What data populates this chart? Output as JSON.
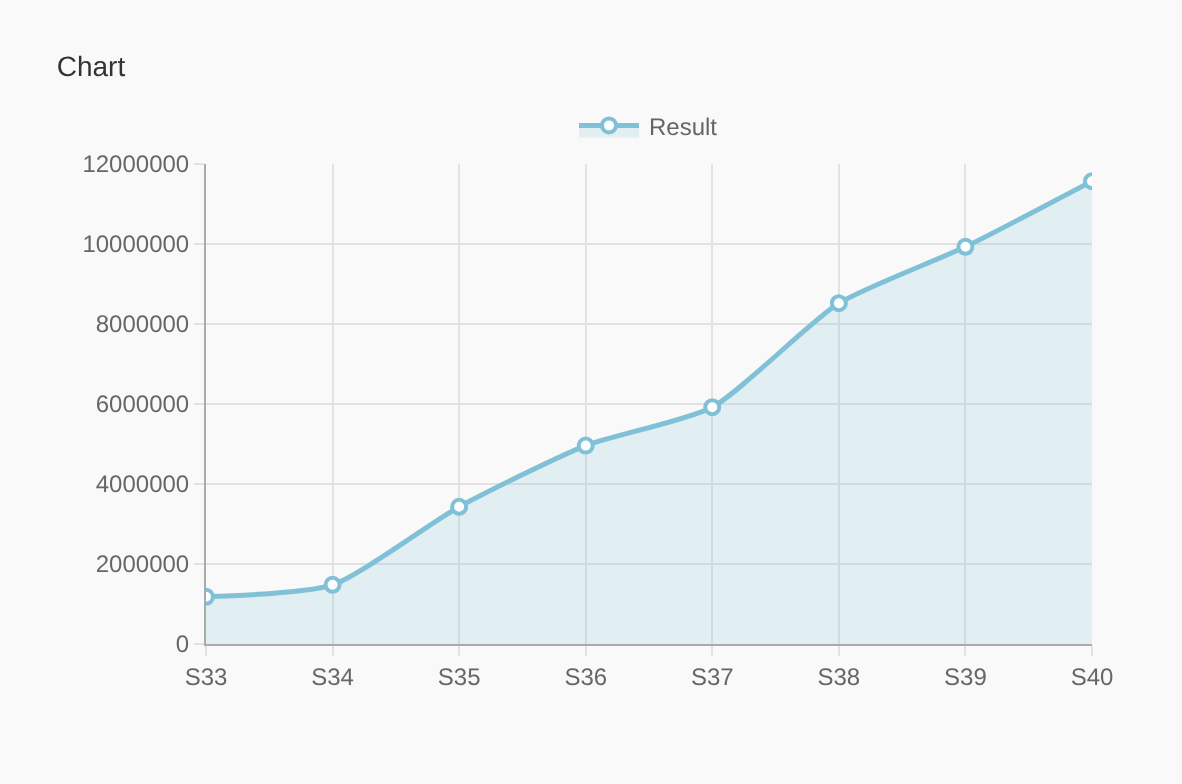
{
  "chart_data": {
    "type": "area",
    "title": "Chart",
    "categories": [
      "S33",
      "S34",
      "S35",
      "S36",
      "S37",
      "S38",
      "S39",
      "S40"
    ],
    "series": [
      {
        "name": "Result",
        "color": "#80c1d8",
        "values": [
          1180000,
          1480000,
          3430000,
          4960000,
          5920000,
          8520000,
          9930000,
          11570000
        ]
      }
    ],
    "ylim": [
      0,
      12000000
    ],
    "yticks": [
      0,
      2000000,
      4000000,
      6000000,
      8000000,
      10000000,
      12000000
    ],
    "grid": true,
    "legend": "top",
    "marker": "circle",
    "line_style": "solid"
  }
}
